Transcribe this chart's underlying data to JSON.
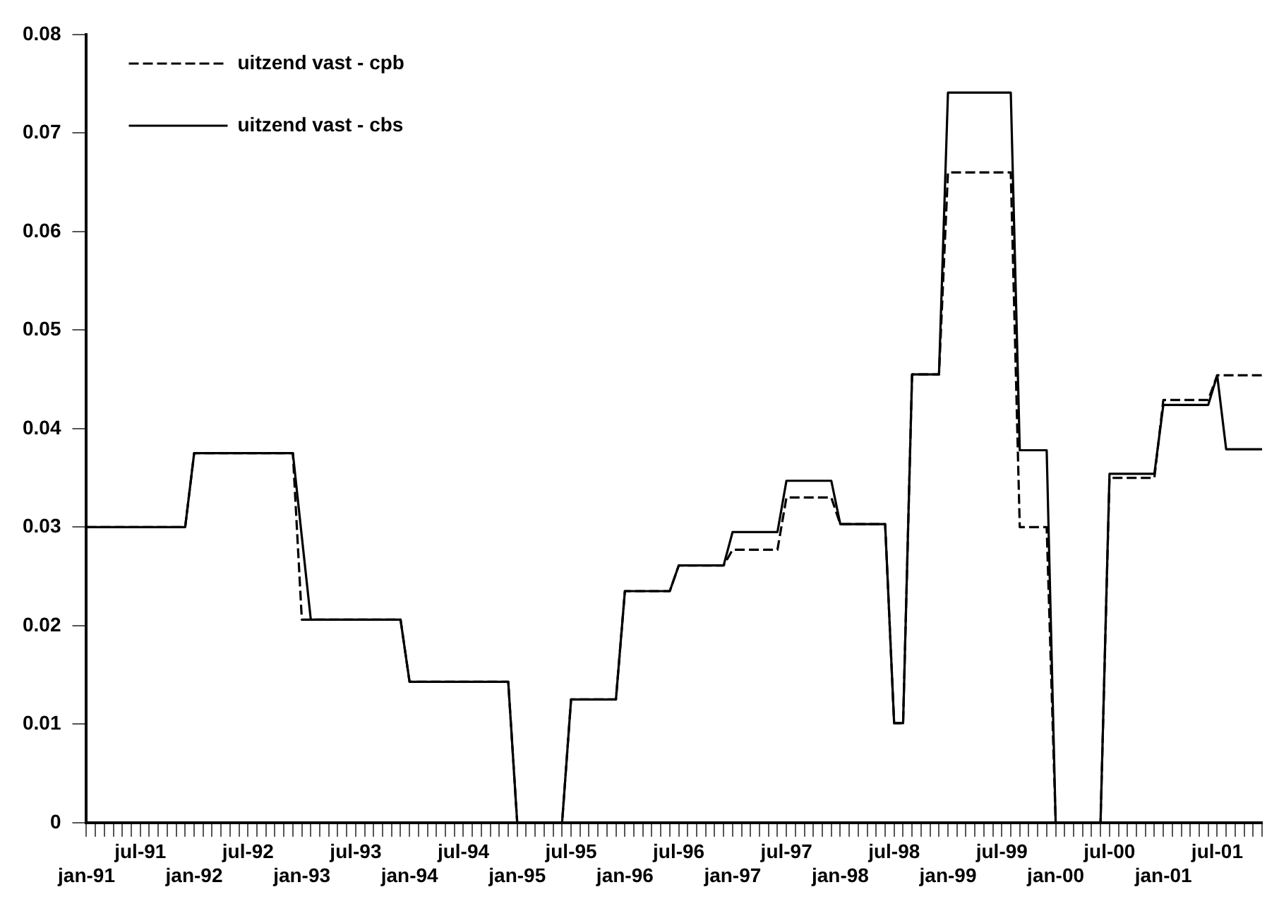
{
  "chart_data": {
    "type": "line",
    "categories": [
      "jan-91",
      null,
      null,
      null,
      null,
      null,
      "jul-91",
      null,
      null,
      null,
      null,
      null,
      "jan-92",
      null,
      null,
      null,
      null,
      null,
      "jul-92",
      null,
      null,
      null,
      null,
      null,
      "jan-93",
      null,
      null,
      null,
      null,
      null,
      "jul-93",
      null,
      null,
      null,
      null,
      null,
      "jan-94",
      null,
      null,
      null,
      null,
      null,
      "jul-94",
      null,
      null,
      null,
      null,
      null,
      "jan-95",
      null,
      null,
      null,
      null,
      null,
      "jul-95",
      null,
      null,
      null,
      null,
      null,
      "jan-96",
      null,
      null,
      null,
      null,
      null,
      "jul-96",
      null,
      null,
      null,
      null,
      null,
      "jan-97",
      null,
      null,
      null,
      null,
      null,
      "jul-97",
      null,
      null,
      null,
      null,
      null,
      "jan-98",
      null,
      null,
      null,
      null,
      null,
      "jul-98",
      null,
      null,
      null,
      null,
      null,
      "jan-99",
      null,
      null,
      null,
      null,
      null,
      "jul-99",
      null,
      null,
      null,
      null,
      null,
      "jan-00",
      null,
      null,
      null,
      null,
      null,
      "jul-00",
      null,
      null,
      null,
      null,
      null,
      "jan-01",
      null,
      null,
      null,
      null,
      null,
      "jul-01",
      null,
      null,
      null,
      null,
      null
    ],
    "series": [
      {
        "name": "uitzend vast - cpb",
        "color": "#000000",
        "line_style": "dashed",
        "values": [
          0.03,
          0.03,
          0.03,
          0.03,
          0.03,
          0.03,
          0.03,
          0.03,
          0.03,
          0.03,
          0.03,
          0.03,
          0.0375,
          0.0375,
          0.0375,
          0.0375,
          0.0375,
          0.0375,
          0.0375,
          0.0375,
          0.0375,
          0.0375,
          0.0375,
          0.0375,
          0.0206,
          0.0206,
          0.0206,
          0.0206,
          0.0206,
          0.0206,
          0.0206,
          0.0206,
          0.0206,
          0.0206,
          0.0206,
          0.0206,
          0.0143,
          0.0143,
          0.0143,
          0.0143,
          0.0143,
          0.0143,
          0.0143,
          0.0143,
          0.0143,
          0.0143,
          0.0143,
          0.0143,
          0,
          0,
          0,
          0,
          0,
          0,
          0.0125,
          0.0125,
          0.0125,
          0.0125,
          0.0125,
          0.0125,
          0.0235,
          0.0235,
          0.0235,
          0.0235,
          0.0235,
          0.0235,
          0.0261,
          0.0261,
          0.0261,
          0.0261,
          0.0261,
          0.0261,
          0.0277,
          0.0277,
          0.0277,
          0.0277,
          0.0277,
          0.0277,
          0.033,
          0.033,
          0.033,
          0.033,
          0.033,
          0.033,
          0.0303,
          0.0303,
          0.0303,
          0.0303,
          0.0303,
          0.0303,
          0.0101,
          0.0101,
          0.0455,
          0.0455,
          0.0455,
          0.0455,
          0.066,
          0.066,
          0.066,
          0.066,
          0.066,
          0.066,
          0.066,
          0.066,
          0.03,
          0.03,
          0.03,
          0.03,
          0,
          0,
          0,
          0,
          0,
          0,
          0.035,
          0.035,
          0.035,
          0.035,
          0.035,
          0.035,
          0.0429,
          0.0429,
          0.0429,
          0.0429,
          0.0429,
          0.0429,
          0.0454,
          0.0454,
          0.0454,
          0.0454,
          0.0454,
          0.0454
        ]
      },
      {
        "name": "uitzend vast - cbs",
        "color": "#000000",
        "line_style": "solid",
        "values": [
          0.03,
          0.03,
          0.03,
          0.03,
          0.03,
          0.03,
          0.03,
          0.03,
          0.03,
          0.03,
          0.03,
          0.03,
          0.0375,
          0.0375,
          0.0375,
          0.0375,
          0.0375,
          0.0375,
          0.0375,
          0.0375,
          0.0375,
          0.0375,
          0.0375,
          0.0375,
          0.029,
          0.0206,
          0.0206,
          0.0206,
          0.0206,
          0.0206,
          0.0206,
          0.0206,
          0.0206,
          0.0206,
          0.0206,
          0.0206,
          0.0143,
          0.0143,
          0.0143,
          0.0143,
          0.0143,
          0.0143,
          0.0143,
          0.0143,
          0.0143,
          0.0143,
          0.0143,
          0.0143,
          0,
          0,
          0,
          0,
          0,
          0,
          0.0125,
          0.0125,
          0.0125,
          0.0125,
          0.0125,
          0.0125,
          0.0235,
          0.0235,
          0.0235,
          0.0235,
          0.0235,
          0.0235,
          0.0261,
          0.0261,
          0.0261,
          0.0261,
          0.0261,
          0.0261,
          0.0295,
          0.0295,
          0.0295,
          0.0295,
          0.0295,
          0.0295,
          0.0347,
          0.0347,
          0.0347,
          0.0347,
          0.0347,
          0.0347,
          0.0303,
          0.0303,
          0.0303,
          0.0303,
          0.0303,
          0.0303,
          0.0101,
          0.0101,
          0.0455,
          0.0455,
          0.0455,
          0.0455,
          0.0741,
          0.0741,
          0.0741,
          0.0741,
          0.0741,
          0.0741,
          0.0741,
          0.0741,
          0.0378,
          0.0378,
          0.0378,
          0.0378,
          0,
          0,
          0,
          0,
          0,
          0,
          0.0354,
          0.0354,
          0.0354,
          0.0354,
          0.0354,
          0.0354,
          0.0424,
          0.0424,
          0.0424,
          0.0424,
          0.0424,
          0.0424,
          0.0454,
          0.0379,
          0.0379,
          0.0379,
          0.0379,
          0.0379
        ]
      }
    ],
    "ylim": [
      0,
      0.08
    ],
    "yticks": [
      0,
      0.01,
      0.02,
      0.03,
      0.04,
      0.05,
      0.06,
      0.07,
      0.08
    ],
    "grid": false,
    "legend": "top left",
    "marker": "none"
  }
}
